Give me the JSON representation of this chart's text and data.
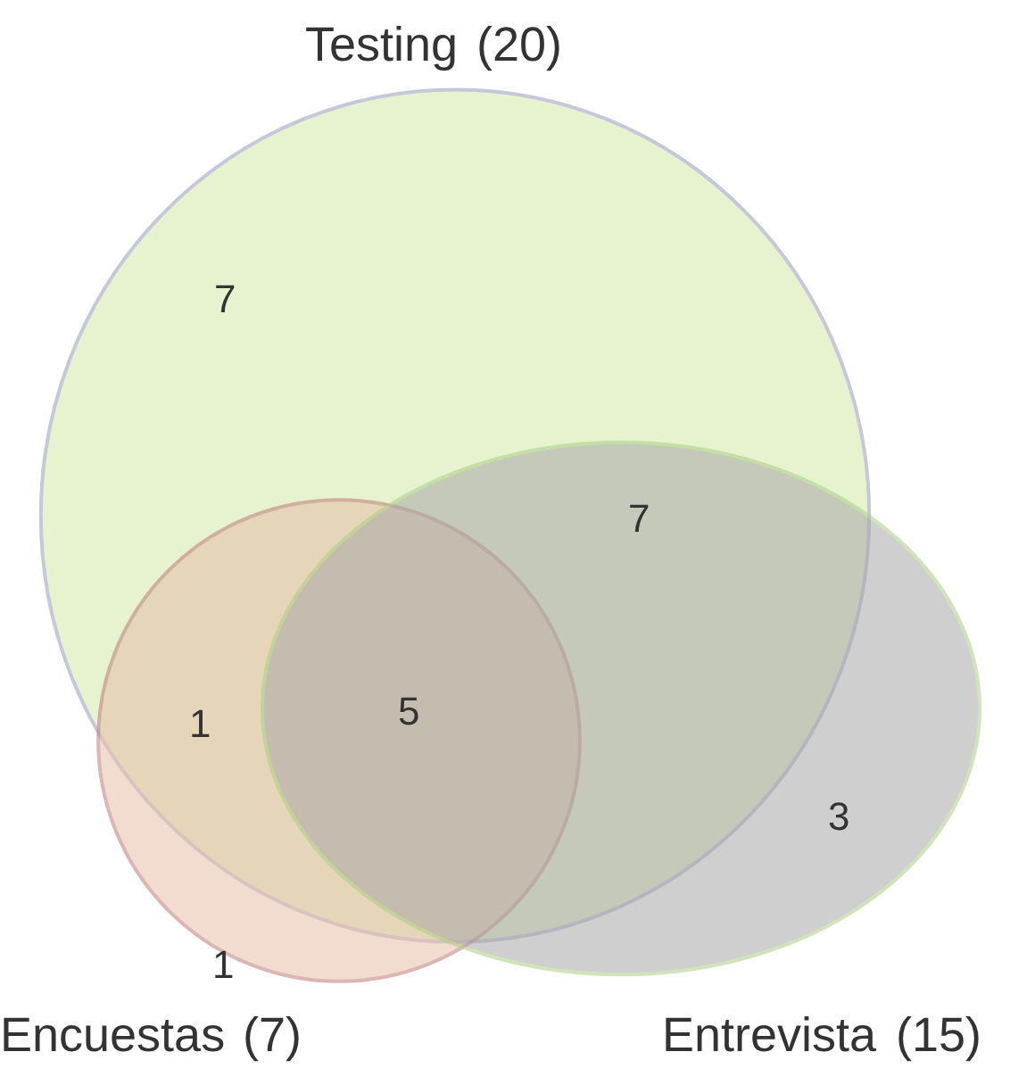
{
  "chart_data": {
    "type": "other",
    "categories": [
      "Testing",
      "Encuestas",
      "Entrevista"
    ],
    "values": [
      20,
      7,
      15
    ],
    "value_labels": [
      "(20)",
      "(7)",
      "(15)"
    ],
    "colors": [
      "#d4e8a8",
      "#e6c0a8",
      "#a8a8a8"
    ],
    "annotations": [
      "7",
      "7",
      "1",
      "5",
      "3",
      "1"
    ]
  }
}
